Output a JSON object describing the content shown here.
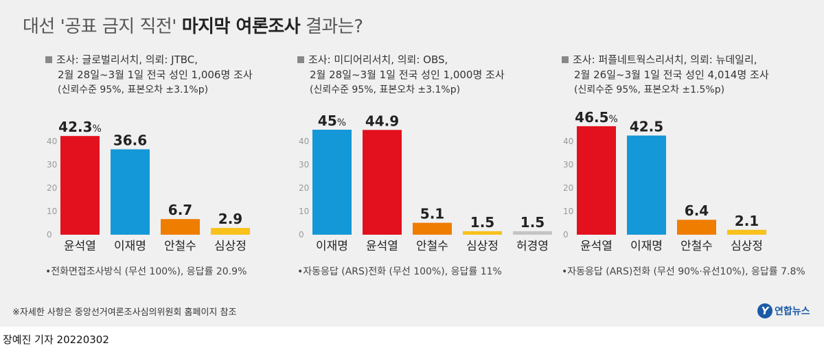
{
  "title": {
    "regular_prefix": "대선 '공표 금지 직전' ",
    "bold": "마지막 여론조사",
    "regular_suffix": " 결과는?"
  },
  "panels": [
    {
      "info_line1": "조사: 글로벌리서치, 의뢰: JTBC,",
      "info_line2": "2월 28일~3월 1일 전국 성인 1,006명 조사",
      "info_line3": "(신뢰수준 95%, 표본오차 ±3.1%p)",
      "method_note": "•전화면접조사방식 (무선 100%), 응답률 20.9%"
    },
    {
      "info_line1": "조사: 미디어리서치, 의뢰: OBS,",
      "info_line2": "2월 28일~3월 1일 전국 성인 1,000명 조사",
      "info_line3": "(신뢰수준 95%, 표본오차 ±3.1%p)",
      "method_note": "•자동응답 (ARS)전화 (무선 100%), 응답률 11%"
    },
    {
      "info_line1": "조사: 퍼플네트웍스리서치, 의뢰: 뉴데일리,",
      "info_line2": "2월 26일~3월 1일 전국 성인 4,014명 조사",
      "info_line3": "(신뢰수준 95%, 표본오차 ±1.5%p)",
      "method_note": "•자동응답 (ARS)전화 (무선 90%·유선10%), 응답률 7.8%"
    }
  ],
  "colors": {
    "윤석열": "#e3101d",
    "이재명": "#1498d8",
    "안철수": "#ef7d00",
    "심상정": "#f8c11c",
    "허경영": "#c4c4c4"
  },
  "chart_data": [
    {
      "type": "bar",
      "categories": [
        "윤석열",
        "이재명",
        "안철수",
        "심상정"
      ],
      "values": [
        42.3,
        36.6,
        6.7,
        2.9
      ],
      "value_labels": [
        "42.3%",
        "36.6",
        "6.7",
        "2.9"
      ],
      "yticks": [
        "0",
        "10",
        "20",
        "30",
        "40"
      ],
      "ylim": [
        0,
        47
      ],
      "grid": false
    },
    {
      "type": "bar",
      "categories": [
        "이재명",
        "윤석열",
        "안철수",
        "심상정",
        "허경영"
      ],
      "values": [
        45,
        44.9,
        5.1,
        1.5,
        1.5
      ],
      "value_labels": [
        "45%",
        "44.9",
        "5.1",
        "1.5",
        "1.5"
      ],
      "yticks": [
        "0",
        "10",
        "20",
        "30",
        "40"
      ],
      "ylim": [
        0,
        47
      ],
      "grid": false
    },
    {
      "type": "bar",
      "categories": [
        "윤석열",
        "이재명",
        "안철수",
        "심상정"
      ],
      "values": [
        46.5,
        42.5,
        6.4,
        2.1
      ],
      "value_labels": [
        "46.5%",
        "42.5",
        "6.4",
        "2.1"
      ],
      "yticks": [
        "0",
        "10",
        "20",
        "30",
        "40"
      ],
      "ylim": [
        0,
        47
      ],
      "grid": false
    }
  ],
  "footnote": "※자세한 사항은 중앙선거여론조사심의위원회 홈페이지 참조",
  "logo_mark": "Y",
  "logo_text": "연합뉴스",
  "byline": "장예진 기자  20220302"
}
